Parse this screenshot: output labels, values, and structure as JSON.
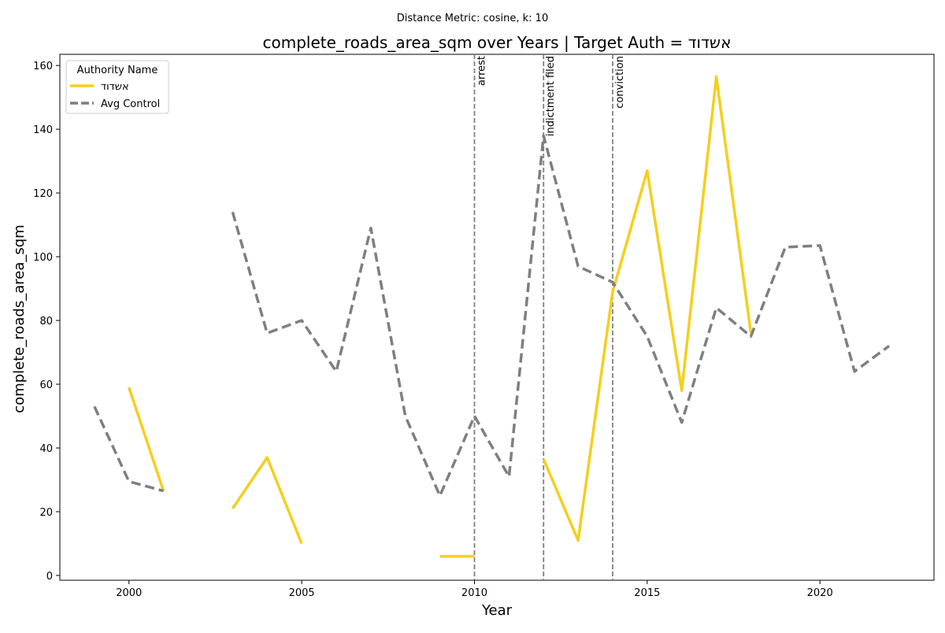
{
  "chart_data": {
    "type": "line",
    "suptitle": "Distance Metric: cosine, k: 10",
    "title": "complete_roads_area_sqm over Years | Target Auth = אשדוד",
    "xlabel": "Year",
    "ylabel": "complete_roads_area_sqm",
    "xlim": [
      1998,
      2023.3
    ],
    "ylim": [
      -1.5,
      163.5
    ],
    "xticks": [
      2000,
      2005,
      2010,
      2015,
      2020
    ],
    "yticks": [
      0,
      20,
      40,
      60,
      80,
      100,
      120,
      140,
      160
    ],
    "legend": {
      "title": "Authority Name",
      "position": "top-left"
    },
    "series": [
      {
        "name": "אשדוד",
        "color": "#f4cf1d",
        "dash": "solid",
        "points": [
          [
            2000,
            59
          ],
          [
            2001,
            26.5
          ],
          [
            2002,
            null
          ],
          [
            2003,
            21
          ],
          [
            2004,
            37
          ],
          [
            2005,
            10
          ],
          [
            2006,
            null
          ],
          [
            2007,
            null
          ],
          [
            2008,
            null
          ],
          [
            2009,
            6
          ],
          [
            2010,
            6
          ],
          [
            2011,
            null
          ],
          [
            2012,
            36.5
          ],
          [
            2013,
            11
          ],
          [
            2014,
            89
          ],
          [
            2015,
            127
          ],
          [
            2016,
            58
          ],
          [
            2017,
            156.5
          ],
          [
            2018,
            76
          ]
        ]
      },
      {
        "name": "Avg Control",
        "color": "#7f7f7f",
        "dash": "dashed",
        "points": [
          [
            1999,
            53
          ],
          [
            2000,
            29.5
          ],
          [
            2001,
            26.5
          ],
          [
            2002,
            null
          ],
          [
            2003,
            114
          ],
          [
            2004,
            76
          ],
          [
            2005,
            80
          ],
          [
            2006,
            64
          ],
          [
            2007,
            109
          ],
          [
            2008,
            50
          ],
          [
            2009,
            25
          ],
          [
            2010,
            50
          ],
          [
            2011,
            31
          ],
          [
            2012,
            138
          ],
          [
            2013,
            97
          ],
          [
            2014,
            92
          ],
          [
            2015,
            75
          ],
          [
            2016,
            48
          ],
          [
            2017,
            84
          ],
          [
            2018,
            75
          ],
          [
            2019,
            103
          ],
          [
            2020,
            103.5
          ],
          [
            2021,
            64
          ],
          [
            2022,
            72
          ]
        ]
      }
    ],
    "events": [
      {
        "x": 2010,
        "label": "arrest"
      },
      {
        "x": 2012,
        "label": "indictment filed"
      },
      {
        "x": 2014,
        "label": "conviction"
      }
    ]
  }
}
